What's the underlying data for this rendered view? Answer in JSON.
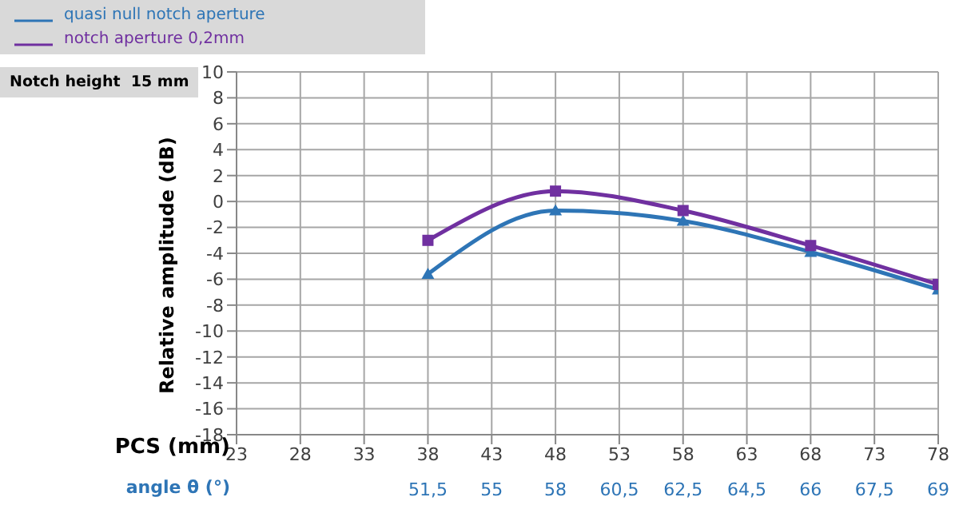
{
  "chart_data": {
    "type": "line",
    "x": [
      38,
      48,
      58,
      68,
      78
    ],
    "series": [
      {
        "name": "quasi null notch aperture",
        "color": "#2e75b6",
        "marker": "triangle",
        "values": [
          -5.6,
          -0.7,
          -1.5,
          -3.9,
          -6.8
        ]
      },
      {
        "name": "notch aperture 0,2mm",
        "color": "#7030a0",
        "marker": "square",
        "values": [
          -3,
          0.8,
          -0.7,
          -3.4,
          -6.4
        ]
      }
    ],
    "xlabel": "PCS (mm)",
    "ylabel": "Relative amplitude (dB)",
    "x2label": "angle θ (°)",
    "xlim": [
      23,
      78
    ],
    "xticks": [
      23,
      28,
      33,
      38,
      43,
      48,
      53,
      58,
      63,
      68,
      73,
      78
    ],
    "ylim": [
      -18,
      10
    ],
    "yticks": [
      -18,
      -16,
      -14,
      -12,
      -10,
      -8,
      -6,
      -4,
      -2,
      0,
      2,
      4,
      6,
      8,
      10
    ],
    "grid": true,
    "legend": "top left",
    "line_style": "solid",
    "annotations": [
      "Notch height  15 mm",
      "51,5",
      "55",
      "58",
      "60,5",
      "62,5",
      "64,5",
      "66",
      "67,5",
      "69"
    ]
  }
}
